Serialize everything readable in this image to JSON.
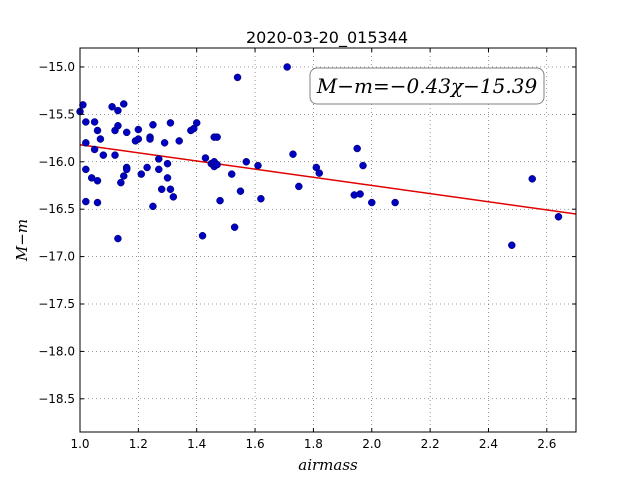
{
  "chart_data": {
    "type": "scatter",
    "title": "2020-03-20_015344",
    "xlabel": "airmass",
    "ylabel": "M−m",
    "xlim": [
      1.0,
      2.7
    ],
    "ylim": [
      -18.85,
      -14.8
    ],
    "y_inverted": true,
    "x_ticks": [
      1.0,
      1.2,
      1.4,
      1.6,
      1.8,
      2.0,
      2.2,
      2.4,
      2.6
    ],
    "x_tick_labels": [
      "1.0",
      "1.2",
      "1.4",
      "1.6",
      "1.8",
      "2.0",
      "2.2",
      "2.4",
      "2.6"
    ],
    "y_ticks": [
      -15.0,
      -15.5,
      -16.0,
      -16.5,
      -17.0,
      -17.5,
      -18.0,
      -18.5
    ],
    "y_tick_labels": [
      "−15.0",
      "−15.5",
      "−16.0",
      "−16.5",
      "−17.0",
      "−17.5",
      "−18.0",
      "−18.5"
    ],
    "grid": true,
    "annotation": "M−m=−0.43χ−15.39",
    "fit": {
      "slope": -0.43,
      "intercept": -15.39,
      "x_range": [
        1.0,
        2.7
      ]
    },
    "points": [
      [
        1.0,
        -15.47
      ],
      [
        1.01,
        -15.4
      ],
      [
        1.02,
        -15.58
      ],
      [
        1.02,
        -15.8
      ],
      [
        1.02,
        -16.08
      ],
      [
        1.02,
        -16.42
      ],
      [
        1.04,
        -16.17
      ],
      [
        1.05,
        -15.58
      ],
      [
        1.05,
        -15.87
      ],
      [
        1.06,
        -15.67
      ],
      [
        1.06,
        -16.2
      ],
      [
        1.06,
        -16.43
      ],
      [
        1.07,
        -15.76
      ],
      [
        1.08,
        -15.93
      ],
      [
        1.11,
        -15.42
      ],
      [
        1.12,
        -15.67
      ],
      [
        1.12,
        -15.93
      ],
      [
        1.13,
        -15.46
      ],
      [
        1.13,
        -15.62
      ],
      [
        1.13,
        -16.81
      ],
      [
        1.14,
        -16.22
      ],
      [
        1.15,
        -15.39
      ],
      [
        1.15,
        -16.15
      ],
      [
        1.16,
        -15.69
      ],
      [
        1.16,
        -16.06
      ],
      [
        1.16,
        -16.08
      ],
      [
        1.19,
        -15.78
      ],
      [
        1.2,
        -15.66
      ],
      [
        1.2,
        -15.76
      ],
      [
        1.21,
        -16.13
      ],
      [
        1.23,
        -16.06
      ],
      [
        1.24,
        -15.74
      ],
      [
        1.24,
        -15.76
      ],
      [
        1.25,
        -16.47
      ],
      [
        1.25,
        -15.61
      ],
      [
        1.27,
        -15.97
      ],
      [
        1.27,
        -16.08
      ],
      [
        1.28,
        -16.29
      ],
      [
        1.29,
        -15.8
      ],
      [
        1.3,
        -16.17
      ],
      [
        1.3,
        -16.02
      ],
      [
        1.31,
        -16.29
      ],
      [
        1.31,
        -15.59
      ],
      [
        1.32,
        -16.37
      ],
      [
        1.34,
        -15.78
      ],
      [
        1.38,
        -15.67
      ],
      [
        1.39,
        -15.65
      ],
      [
        1.4,
        -15.59
      ],
      [
        1.42,
        -16.78
      ],
      [
        1.43,
        -15.96
      ],
      [
        1.45,
        -16.02
      ],
      [
        1.46,
        -16.05
      ],
      [
        1.46,
        -15.74
      ],
      [
        1.46,
        -16.0
      ],
      [
        1.47,
        -16.03
      ],
      [
        1.47,
        -15.74
      ],
      [
        1.48,
        -16.41
      ],
      [
        1.52,
        -16.13
      ],
      [
        1.53,
        -16.69
      ],
      [
        1.54,
        -15.11
      ],
      [
        1.55,
        -16.31
      ],
      [
        1.57,
        -16.0
      ],
      [
        1.61,
        -16.04
      ],
      [
        1.62,
        -16.39
      ],
      [
        1.71,
        -15.0
      ],
      [
        1.73,
        -15.92
      ],
      [
        1.75,
        -16.26
      ],
      [
        1.81,
        -16.06
      ],
      [
        1.82,
        -16.12
      ],
      [
        1.94,
        -16.35
      ],
      [
        1.95,
        -15.86
      ],
      [
        1.96,
        -16.34
      ],
      [
        1.97,
        -16.04
      ],
      [
        2.0,
        -16.43
      ],
      [
        2.08,
        -16.43
      ],
      [
        2.48,
        -16.88
      ],
      [
        2.55,
        -16.18
      ],
      [
        2.64,
        -16.58
      ]
    ]
  }
}
